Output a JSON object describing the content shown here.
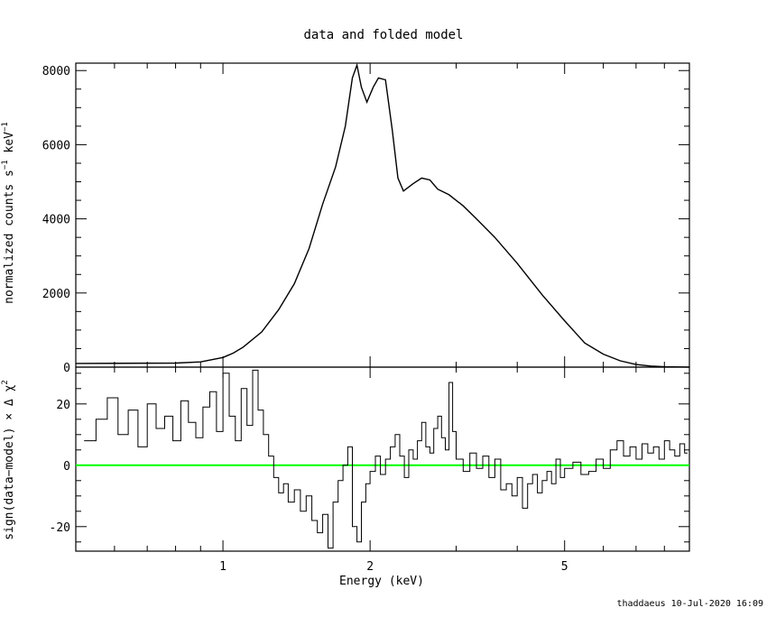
{
  "chart_data": [
    {
      "type": "line",
      "title": "data and folded model",
      "ylabel": "normalized counts s^-1 keV^-1",
      "ylabel_parts": {
        "a": "normalized counts s",
        "b": "−1",
        "c": " keV",
        "d": "−1"
      },
      "x_scale": "log",
      "xlim": [
        0.5,
        9.0
      ],
      "ylim": [
        0,
        8200
      ],
      "y_ticks": [
        0,
        2000,
        4000,
        6000,
        8000
      ],
      "grid": false,
      "series": [
        {
          "x": [
            0.5,
            0.8,
            0.9,
            1.0,
            1.05,
            1.1,
            1.2,
            1.3,
            1.4,
            1.5,
            1.6,
            1.7,
            1.78,
            1.84,
            1.88,
            1.92,
            1.97,
            2.03,
            2.08,
            2.15,
            2.22,
            2.28,
            2.34,
            2.45,
            2.55,
            2.65,
            2.75,
            2.9,
            3.1,
            3.3,
            3.6,
            4.0,
            4.5,
            5.0,
            5.5,
            6.0,
            6.5,
            7.0,
            7.5,
            8.0,
            9.0
          ],
          "y": [
            100,
            110,
            140,
            260,
            380,
            540,
            950,
            1550,
            2250,
            3200,
            4400,
            5400,
            6500,
            7800,
            8150,
            7550,
            7150,
            7550,
            7800,
            7750,
            6400,
            5100,
            4750,
            4950,
            5100,
            5050,
            4800,
            4650,
            4350,
            4000,
            3500,
            2800,
            1950,
            1250,
            650,
            350,
            170,
            70,
            30,
            10,
            0
          ]
        }
      ]
    },
    {
      "type": "line",
      "xlabel": "Energy (keV)",
      "ylabel": "sign(data−model) × Δ χ²",
      "ylabel_parts": {
        "a": "sign(data−model) × Δ χ",
        "b": "2"
      },
      "x_scale": "log",
      "xlim": [
        0.5,
        9.0
      ],
      "ylim": [
        -28,
        32
      ],
      "x_ticks": [
        1,
        2,
        5
      ],
      "y_ticks": [
        -20,
        0,
        20
      ],
      "zero_line_color": "#00ff00",
      "series": [
        {
          "x": [
            0.52,
            0.55,
            0.58,
            0.61,
            0.64,
            0.67,
            0.7,
            0.73,
            0.76,
            0.79,
            0.82,
            0.85,
            0.88,
            0.91,
            0.94,
            0.97,
            1.0,
            1.03,
            1.06,
            1.09,
            1.12,
            1.15,
            1.18,
            1.21,
            1.24,
            1.27,
            1.3,
            1.33,
            1.36,
            1.4,
            1.44,
            1.48,
            1.52,
            1.56,
            1.6,
            1.64,
            1.68,
            1.72,
            1.76,
            1.8,
            1.84,
            1.88,
            1.92,
            1.96,
            2.0,
            2.05,
            2.1,
            2.15,
            2.2,
            2.25,
            2.3,
            2.35,
            2.4,
            2.45,
            2.5,
            2.55,
            2.6,
            2.65,
            2.7,
            2.75,
            2.8,
            2.85,
            2.9,
            2.95,
            3.0,
            3.1,
            3.2,
            3.3,
            3.4,
            3.5,
            3.6,
            3.7,
            3.8,
            3.9,
            4.0,
            4.1,
            4.2,
            4.3,
            4.4,
            4.5,
            4.6,
            4.7,
            4.8,
            4.9,
            5.0,
            5.2,
            5.4,
            5.6,
            5.8,
            6.0,
            6.2,
            6.4,
            6.6,
            6.8,
            7.0,
            7.2,
            7.4,
            7.6,
            7.8,
            8.0,
            8.2,
            8.4,
            8.6,
            8.8
          ],
          "y": [
            8,
            15,
            22,
            10,
            18,
            6,
            20,
            12,
            16,
            8,
            21,
            14,
            9,
            19,
            24,
            11,
            30,
            16,
            8,
            25,
            13,
            31,
            18,
            10,
            3,
            -4,
            -9,
            -6,
            -12,
            -8,
            -15,
            -10,
            -18,
            -22,
            -16,
            -27,
            -12,
            -5,
            0,
            6,
            -20,
            -25,
            -12,
            -6,
            -2,
            3,
            -3,
            2,
            6,
            10,
            3,
            -4,
            5,
            2,
            8,
            14,
            6,
            4,
            12,
            16,
            9,
            5,
            27,
            11,
            2,
            -2,
            4,
            -1,
            3,
            -4,
            2,
            -8,
            -6,
            -10,
            -4,
            -14,
            -6,
            -3,
            -9,
            -5,
            -2,
            -6,
            2,
            -4,
            -1,
            1,
            -3,
            -2,
            2,
            -1,
            5,
            8,
            3,
            6,
            2,
            7,
            4,
            6,
            2,
            8,
            5,
            3,
            7,
            4
          ]
        }
      ]
    }
  ],
  "footer": "thaddaeus 10-Jul-2020 16:09"
}
